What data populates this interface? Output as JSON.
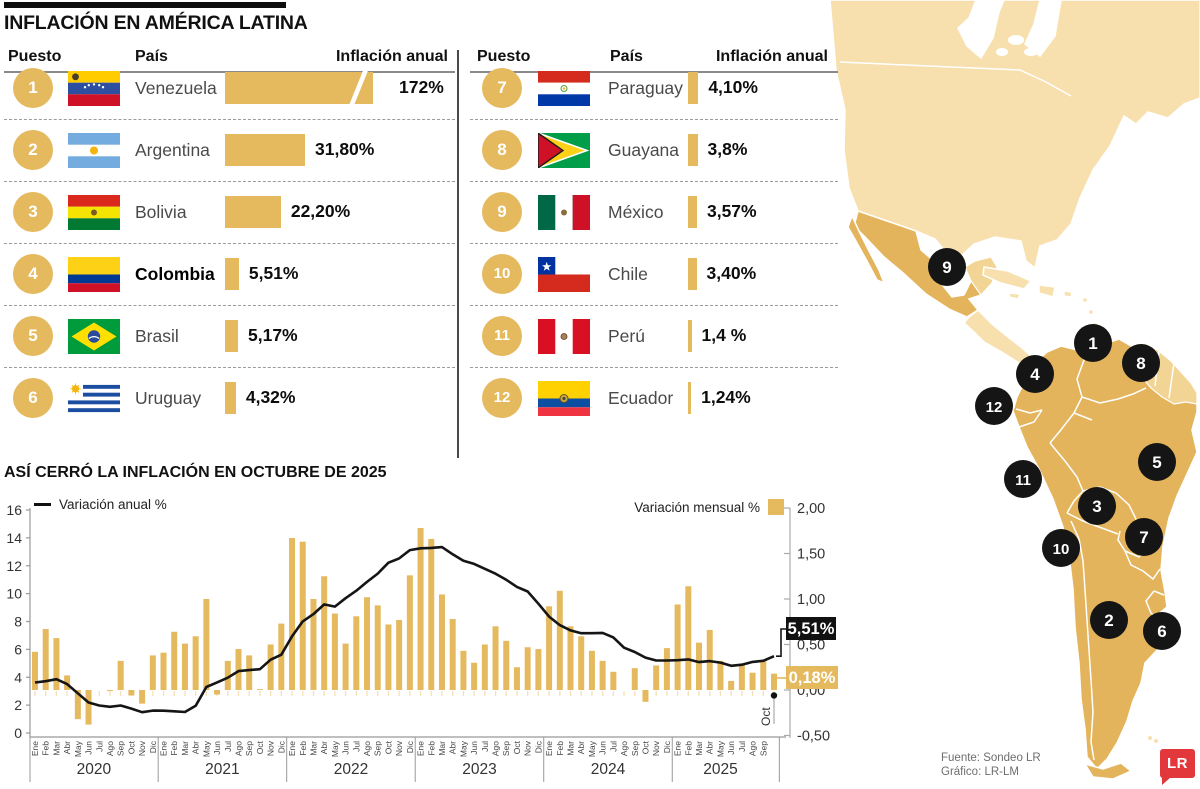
{
  "title": "INFLACIÓN EN AMÉRICA LATINA",
  "table": {
    "headers": {
      "rank": "Puesto",
      "country": "País",
      "value": "Inflación anual"
    },
    "rows": [
      {
        "rank": "1",
        "country": "Venezuela",
        "value": "172%",
        "pct": 172,
        "flag": "venezuela",
        "bold": false,
        "broken": true
      },
      {
        "rank": "2",
        "country": "Argentina",
        "value": "31,80%",
        "pct": 31.8,
        "flag": "argentina",
        "bold": false
      },
      {
        "rank": "3",
        "country": "Bolivia",
        "value": "22,20%",
        "pct": 22.2,
        "flag": "bolivia",
        "bold": false
      },
      {
        "rank": "4",
        "country": "Colombia",
        "value": "5,51%",
        "pct": 5.51,
        "flag": "colombia",
        "bold": true
      },
      {
        "rank": "5",
        "country": "Brasil",
        "value": "5,17%",
        "pct": 5.17,
        "flag": "brasil",
        "bold": false
      },
      {
        "rank": "6",
        "country": "Uruguay",
        "value": "4,32%",
        "pct": 4.32,
        "flag": "uruguay",
        "bold": false
      },
      {
        "rank": "7",
        "country": "Paraguay",
        "value": "4,10%",
        "pct": 4.1,
        "flag": "paraguay",
        "bold": false
      },
      {
        "rank": "8",
        "country": "Guayana",
        "value": "3,8%",
        "pct": 3.8,
        "flag": "guyana",
        "bold": false
      },
      {
        "rank": "9",
        "country": "México",
        "value": "3,57%",
        "pct": 3.57,
        "flag": "mexico",
        "bold": false
      },
      {
        "rank": "10",
        "country": "Chile",
        "value": "3,40%",
        "pct": 3.4,
        "flag": "chile",
        "bold": false
      },
      {
        "rank": "11",
        "country": "Perú",
        "value": "1,4 %",
        "pct": 1.4,
        "flag": "peru",
        "bold": false
      },
      {
        "rank": "12",
        "country": "Ecuador",
        "value": "1,24%",
        "pct": 1.24,
        "flag": "ecuador",
        "bold": false
      }
    ]
  },
  "chart_data": {
    "type": "line+bar",
    "title": "ASÍ CERRÓ LA INFLACIÓN EN OCTUBRE DE 2025",
    "legend": {
      "line": "Variación anual %",
      "bar": "Variación mensual %"
    },
    "years": [
      "2020",
      "2021",
      "2022",
      "2023",
      "2024",
      "2025"
    ],
    "months_per_year": [
      12,
      12,
      12,
      12,
      12,
      10
    ],
    "month_labels": [
      "Ene",
      "Feb",
      "Mar",
      "Abr",
      "May",
      "Jun",
      "Jul",
      "Ago",
      "Sep",
      "Oct",
      "Nov",
      "Dic"
    ],
    "axis_left": {
      "min": 0,
      "max": 16,
      "step": 2
    },
    "axis_right": {
      "min": -0.5,
      "max": 2,
      "step": 0.5,
      "labels": [
        "2,00",
        "1,50",
        "1,00",
        "0,50",
        "0,00",
        "-0,50"
      ]
    },
    "series": [
      {
        "name": "Variación anual %",
        "type": "line",
        "color": "#151515",
        "values": [
          3.62,
          3.72,
          3.86,
          3.51,
          2.85,
          2.19,
          1.97,
          1.88,
          1.97,
          1.75,
          1.49,
          1.61,
          1.6,
          1.56,
          1.51,
          1.95,
          3.3,
          3.63,
          3.97,
          4.44,
          4.51,
          4.58,
          5.26,
          5.62,
          6.94,
          8.01,
          8.53,
          9.23,
          9.07,
          9.67,
          10.21,
          10.84,
          11.44,
          12.22,
          12.53,
          13.12,
          13.25,
          13.28,
          13.34,
          12.82,
          12.36,
          12.13,
          11.78,
          11.43,
          10.99,
          10.48,
          10.15,
          9.28,
          8.35,
          7.74,
          7.36,
          7.16,
          7.16,
          7.18,
          6.86,
          6.12,
          5.81,
          5.41,
          5.2,
          5.2,
          5.22,
          5.28,
          5.09,
          5.16,
          5.05,
          4.82,
          4.9,
          5.1,
          5.18,
          5.51
        ]
      },
      {
        "name": "Variación mensual %",
        "type": "bar",
        "color": "#E5B95E",
        "values": [
          0.42,
          0.67,
          0.57,
          0.16,
          -0.32,
          -0.38,
          0.0,
          -0.01,
          0.32,
          -0.06,
          -0.15,
          0.38,
          0.41,
          0.64,
          0.51,
          0.59,
          1.0,
          -0.05,
          0.32,
          0.45,
          0.38,
          0.01,
          0.5,
          0.73,
          1.67,
          1.63,
          1.0,
          1.25,
          0.84,
          0.51,
          0.81,
          1.02,
          0.93,
          0.72,
          0.77,
          1.26,
          1.78,
          1.66,
          1.05,
          0.78,
          0.43,
          0.3,
          0.5,
          0.7,
          0.54,
          0.25,
          0.47,
          0.45,
          0.92,
          1.09,
          0.7,
          0.59,
          0.43,
          0.32,
          0.2,
          0.0,
          0.24,
          -0.13,
          0.27,
          0.46,
          0.94,
          1.14,
          0.52,
          0.66,
          0.32,
          0.1,
          0.28,
          0.19,
          0.32,
          0.18
        ]
      }
    ],
    "annotations": {
      "annual": "5,51%",
      "monthly": "0,18%",
      "month": "Oct"
    }
  },
  "map": {
    "markers": [
      {
        "n": "1",
        "country": "Venezuela"
      },
      {
        "n": "2",
        "country": "Argentina"
      },
      {
        "n": "3",
        "country": "Bolivia"
      },
      {
        "n": "4",
        "country": "Colombia"
      },
      {
        "n": "5",
        "country": "Brasil"
      },
      {
        "n": "6",
        "country": "Uruguay"
      },
      {
        "n": "7",
        "country": "Paraguay"
      },
      {
        "n": "8",
        "country": "Guayana"
      },
      {
        "n": "9",
        "country": "México"
      },
      {
        "n": "10",
        "country": "Chile"
      },
      {
        "n": "11",
        "country": "Perú"
      },
      {
        "n": "12",
        "country": "Ecuador"
      }
    ]
  },
  "footer": {
    "source": "Fuente: Sondeo LR",
    "credit": "Gráfico: LR-LM",
    "logo": "LR"
  },
  "palette": {
    "gold": "#E5B95E",
    "map_light": "#F7E0AE",
    "map_dark": "#E4B45C",
    "map_lighter": "#F2D595",
    "black": "#151515",
    "logo_red": "#E2373B"
  }
}
